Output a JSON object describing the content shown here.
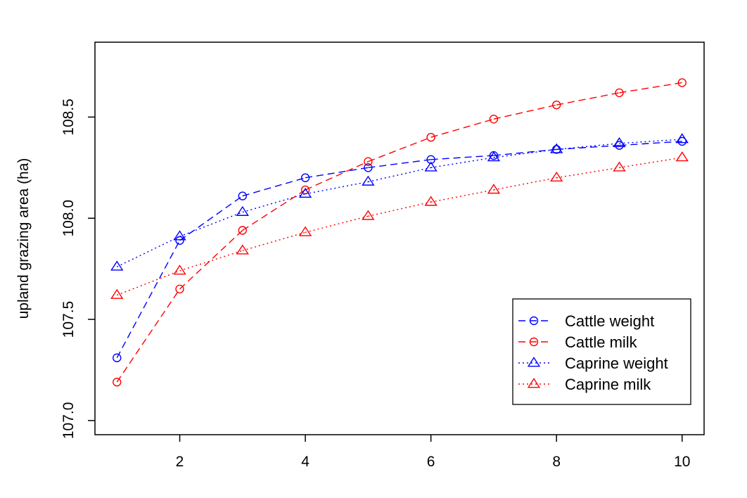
{
  "chart_data": {
    "type": "line",
    "title": "",
    "xlabel": "",
    "ylabel": "upland grazing area (ha)",
    "xlim": [
      0.65,
      10.35
    ],
    "ylim": [
      106.93,
      108.87
    ],
    "x_ticks": [
      "2",
      "4",
      "6",
      "8",
      "10"
    ],
    "y_ticks": [
      "107.0",
      "107.5",
      "108.0",
      "108.5"
    ],
    "grid": false,
    "legend_position": "bottom-right",
    "x": [
      1,
      2,
      3,
      4,
      5,
      6,
      7,
      8,
      9,
      10
    ],
    "series": [
      {
        "name": "Cattle weight",
        "color": "#0000ff",
        "line": "dashed",
        "marker": "circle",
        "values": [
          107.31,
          107.89,
          108.11,
          108.2,
          108.25,
          108.29,
          108.31,
          108.34,
          108.36,
          108.38
        ]
      },
      {
        "name": "Cattle milk",
        "color": "#ff0000",
        "line": "dashed",
        "marker": "circle",
        "values": [
          107.19,
          107.65,
          107.94,
          108.14,
          108.28,
          108.4,
          108.49,
          108.56,
          108.62,
          108.67
        ]
      },
      {
        "name": "Caprine weight",
        "color": "#0000ff",
        "line": "dotted",
        "marker": "triangle",
        "values": [
          107.76,
          107.91,
          108.03,
          108.12,
          108.18,
          108.25,
          108.3,
          108.34,
          108.37,
          108.39
        ]
      },
      {
        "name": "Caprine milk",
        "color": "#ff0000",
        "line": "dotted",
        "marker": "triangle",
        "values": [
          107.62,
          107.74,
          107.84,
          107.93,
          108.01,
          108.08,
          108.14,
          108.2,
          108.25,
          108.3
        ]
      }
    ]
  }
}
